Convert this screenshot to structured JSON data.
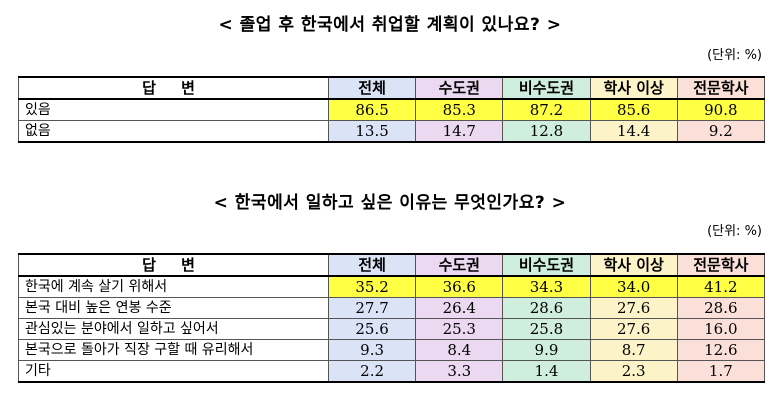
{
  "section1": {
    "title": "< 졸업 후 한국에서 취업할 계획이 있나요? >",
    "unit": "(단위: %)",
    "header": [
      "답 변",
      "전체",
      "수도권",
      "비수도권",
      "학사 이상",
      "전문학사"
    ],
    "rows": [
      {
        "label": "있음",
        "values": [
          "86.5",
          "85.3",
          "87.2",
          "85.6",
          "90.8"
        ]
      },
      {
        "label": "없음",
        "values": [
          "13.5",
          "14.7",
          "12.8",
          "14.4",
          "9.2"
        ]
      }
    ]
  },
  "section2": {
    "title": "< 한국에서 일하고 싶은 이유는 무엇인가요? >",
    "unit": "(단위: %)",
    "header": [
      "답 변",
      "전체",
      "수도권",
      "비수도권",
      "학사 이상",
      "전문학사"
    ],
    "rows": [
      {
        "label": "한국에 계속 살기 위해서",
        "values": [
          "35.2",
          "36.6",
          "34.3",
          "34.0",
          "41.2"
        ]
      },
      {
        "label": "본국 대비 높은 연봉 수준",
        "values": [
          "27.7",
          "26.4",
          "28.6",
          "27.6",
          "28.6"
        ]
      },
      {
        "label": "관심있는 분야에서 일하고 싶어서",
        "values": [
          "25.6",
          "25.3",
          "25.8",
          "27.6",
          "16.0"
        ]
      },
      {
        "label": "본국으로 돌아가 직장 구할 때 유리해서",
        "values": [
          "9.3",
          "8.4",
          "9.9",
          "8.7",
          "12.6"
        ]
      },
      {
        "label": "기타",
        "values": [
          "2.2",
          "3.3",
          "1.4",
          "2.3",
          "1.7"
        ]
      }
    ]
  },
  "colors": {
    "highlight": "#ffff44",
    "total": "#dbe3f7",
    "metro": "#ead9f0",
    "nonmetro": "#cfeedd",
    "bachelor": "#fdf3c8",
    "college": "#fbe0d9"
  }
}
